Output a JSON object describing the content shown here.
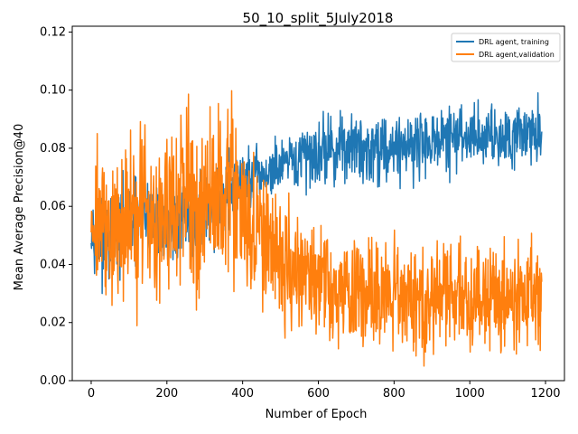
{
  "chart_data": {
    "type": "line",
    "title": "50_10_split_5July2018",
    "xlabel": "Number of Epoch",
    "ylabel": "Mean Average Precision@40",
    "xlim": [
      -50,
      1250
    ],
    "ylim": [
      0,
      0.122
    ],
    "x_ticks": [
      0,
      200,
      400,
      600,
      800,
      1000,
      1200
    ],
    "x_tick_labels": [
      "0",
      "200",
      "400",
      "600",
      "800",
      "1000",
      "1200"
    ],
    "y_ticks": [
      0.0,
      0.02,
      0.04,
      0.06,
      0.08,
      0.1,
      0.12
    ],
    "y_tick_labels": [
      "0.00",
      "0.02",
      "0.04",
      "0.06",
      "0.08",
      "0.10",
      "0.12"
    ],
    "grid": false,
    "legend_position": "top-right",
    "series": [
      {
        "name": "DRL agent, training",
        "color": "#1f77b4",
        "x": [
          0,
          20,
          40,
          60,
          80,
          100,
          120,
          140,
          160,
          180,
          200,
          220,
          240,
          260,
          280,
          300,
          320,
          340,
          360,
          380,
          400,
          420,
          440,
          460,
          480,
          500,
          520,
          540,
          560,
          580,
          600,
          620,
          640,
          660,
          680,
          700,
          720,
          740,
          760,
          780,
          800,
          820,
          840,
          860,
          880,
          900,
          920,
          940,
          960,
          980,
          1000,
          1020,
          1040,
          1060,
          1080,
          1100,
          1120,
          1140,
          1160,
          1180,
          1190
        ],
        "y": [
          0.055,
          0.048,
          0.045,
          0.05,
          0.052,
          0.055,
          0.054,
          0.056,
          0.055,
          0.054,
          0.053,
          0.055,
          0.054,
          0.055,
          0.057,
          0.058,
          0.06,
          0.062,
          0.064,
          0.066,
          0.068,
          0.069,
          0.07,
          0.071,
          0.072,
          0.073,
          0.074,
          0.075,
          0.077,
          0.078,
          0.079,
          0.08,
          0.079,
          0.08,
          0.081,
          0.08,
          0.079,
          0.08,
          0.081,
          0.08,
          0.08,
          0.081,
          0.082,
          0.081,
          0.082,
          0.083,
          0.082,
          0.083,
          0.084,
          0.083,
          0.084,
          0.085,
          0.084,
          0.085,
          0.084,
          0.085,
          0.086,
          0.085,
          0.086,
          0.085,
          0.086
        ],
        "noise": [
          0.006,
          0.009,
          0.01,
          0.01,
          0.01,
          0.01,
          0.01,
          0.01,
          0.01,
          0.01,
          0.01,
          0.01,
          0.01,
          0.01,
          0.01,
          0.01,
          0.01,
          0.01,
          0.01,
          0.009,
          0.008,
          0.008,
          0.007,
          0.007,
          0.007,
          0.007,
          0.007,
          0.007,
          0.008,
          0.008,
          0.008,
          0.008,
          0.008,
          0.008,
          0.008,
          0.008,
          0.008,
          0.008,
          0.009,
          0.008,
          0.008,
          0.008,
          0.008,
          0.008,
          0.008,
          0.008,
          0.008,
          0.008,
          0.008,
          0.008,
          0.008,
          0.008,
          0.008,
          0.008,
          0.008,
          0.008,
          0.008,
          0.008,
          0.008,
          0.008,
          0.007
        ]
      },
      {
        "name": "DRL agent,validation",
        "color": "#ff7f0e",
        "x": [
          0,
          20,
          40,
          60,
          80,
          100,
          120,
          140,
          160,
          180,
          200,
          220,
          240,
          260,
          280,
          300,
          320,
          340,
          360,
          380,
          400,
          420,
          440,
          460,
          480,
          500,
          520,
          540,
          560,
          580,
          600,
          620,
          640,
          660,
          680,
          700,
          720,
          740,
          760,
          780,
          800,
          820,
          840,
          860,
          880,
          900,
          920,
          940,
          960,
          980,
          1000,
          1020,
          1040,
          1060,
          1080,
          1100,
          1120,
          1140,
          1160,
          1180,
          1190
        ],
        "y": [
          0.06,
          0.055,
          0.052,
          0.05,
          0.052,
          0.055,
          0.058,
          0.06,
          0.058,
          0.057,
          0.058,
          0.06,
          0.062,
          0.06,
          0.058,
          0.06,
          0.063,
          0.065,
          0.068,
          0.065,
          0.058,
          0.052,
          0.05,
          0.047,
          0.045,
          0.043,
          0.04,
          0.038,
          0.036,
          0.034,
          0.033,
          0.032,
          0.031,
          0.03,
          0.03,
          0.029,
          0.029,
          0.028,
          0.029,
          0.029,
          0.028,
          0.028,
          0.029,
          0.028,
          0.028,
          0.029,
          0.029,
          0.028,
          0.029,
          0.029,
          0.029,
          0.028,
          0.029,
          0.03,
          0.029,
          0.029,
          0.03,
          0.029,
          0.03,
          0.028,
          0.027
        ],
        "noise": [
          0.018,
          0.018,
          0.018,
          0.018,
          0.018,
          0.02,
          0.022,
          0.022,
          0.02,
          0.02,
          0.02,
          0.02,
          0.02,
          0.02,
          0.02,
          0.02,
          0.02,
          0.02,
          0.022,
          0.02,
          0.018,
          0.016,
          0.016,
          0.016,
          0.016,
          0.016,
          0.016,
          0.016,
          0.015,
          0.014,
          0.013,
          0.013,
          0.013,
          0.013,
          0.013,
          0.013,
          0.013,
          0.013,
          0.013,
          0.013,
          0.013,
          0.013,
          0.013,
          0.013,
          0.013,
          0.013,
          0.013,
          0.013,
          0.013,
          0.013,
          0.013,
          0.013,
          0.013,
          0.013,
          0.013,
          0.013,
          0.013,
          0.013,
          0.013,
          0.013,
          0.012
        ]
      }
    ]
  }
}
